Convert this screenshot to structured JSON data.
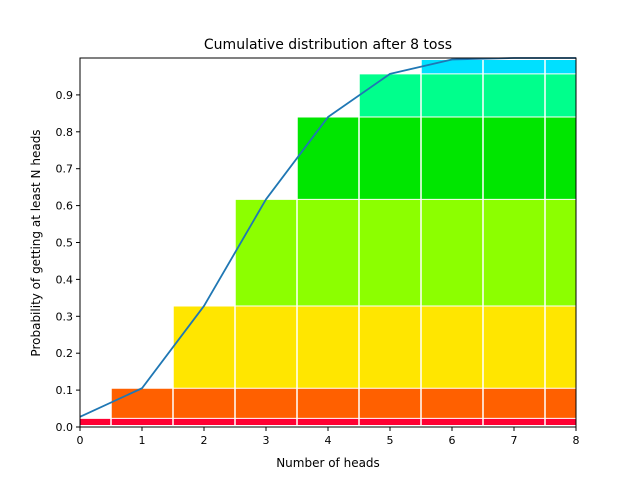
{
  "chart_data": {
    "type": "bar",
    "title": "Cumulative distribution after 8 toss",
    "xlabel": "Number of heads",
    "ylabel": "Probability of getting at least N heads",
    "xlim": [
      0,
      8
    ],
    "ylim": [
      0,
      1.0
    ],
    "xticks": [
      0,
      1,
      2,
      3,
      4,
      5,
      6,
      7,
      8
    ],
    "yticks": [
      0.0,
      0.1,
      0.2,
      0.3,
      0.4,
      0.5,
      0.6,
      0.7,
      0.8,
      0.9
    ],
    "grid": false,
    "stacked_bands": {
      "description_of_values": "cumulative level reached by each band",
      "bands": [
        {
          "start_x": 0,
          "bottom": 0.0,
          "top": 0.0039,
          "color": "#ffffff"
        },
        {
          "start_x": 0,
          "bottom": 0.0039,
          "top": 0.0234,
          "color": "#ff0033"
        },
        {
          "start_x": 0.5,
          "bottom": 0.0234,
          "top": 0.105,
          "color": "#ff6000"
        },
        {
          "start_x": 1.5,
          "bottom": 0.105,
          "top": 0.328,
          "color": "#ffe600"
        },
        {
          "start_x": 2.5,
          "bottom": 0.328,
          "top": 0.617,
          "color": "#8cff00"
        },
        {
          "start_x": 3.5,
          "bottom": 0.617,
          "top": 0.84,
          "color": "#00e600"
        },
        {
          "start_x": 4.5,
          "bottom": 0.84,
          "top": 0.957,
          "color": "#00ff8c"
        },
        {
          "start_x": 5.5,
          "bottom": 0.957,
          "top": 0.996,
          "color": "#00e0ff"
        }
      ]
    },
    "series": [
      {
        "type": "line",
        "color": "#1f77b4",
        "x": [
          0,
          1,
          2,
          3,
          4,
          5,
          6,
          7,
          8
        ],
        "values": [
          0.0277,
          0.105,
          0.328,
          0.617,
          0.84,
          0.957,
          0.996,
          1.0,
          1.0
        ]
      }
    ]
  }
}
